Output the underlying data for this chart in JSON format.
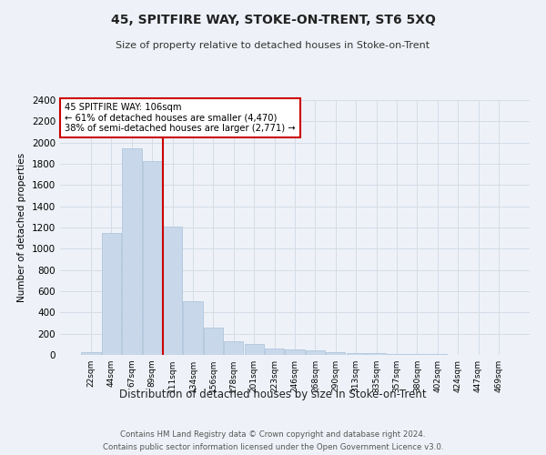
{
  "title": "45, SPITFIRE WAY, STOKE-ON-TRENT, ST6 5XQ",
  "subtitle": "Size of property relative to detached houses in Stoke-on-Trent",
  "xlabel": "Distribution of detached houses by size in Stoke-on-Trent",
  "ylabel": "Number of detached properties",
  "footer_line1": "Contains HM Land Registry data © Crown copyright and database right 2024.",
  "footer_line2": "Contains public sector information licensed under the Open Government Licence v3.0.",
  "bin_labels": [
    "22sqm",
    "44sqm",
    "67sqm",
    "89sqm",
    "111sqm",
    "134sqm",
    "156sqm",
    "178sqm",
    "201sqm",
    "223sqm",
    "246sqm",
    "268sqm",
    "290sqm",
    "313sqm",
    "335sqm",
    "357sqm",
    "380sqm",
    "402sqm",
    "424sqm",
    "447sqm",
    "469sqm"
  ],
  "bar_heights": [
    30,
    1150,
    1950,
    1830,
    1210,
    510,
    260,
    130,
    100,
    60,
    50,
    40,
    30,
    20,
    15,
    10,
    8,
    5,
    3,
    2,
    1
  ],
  "bar_color": "#c8d8ea",
  "bar_edge_color": "#a8c0d8",
  "ylim": [
    0,
    2400
  ],
  "yticks": [
    0,
    200,
    400,
    600,
    800,
    1000,
    1200,
    1400,
    1600,
    1800,
    2000,
    2200,
    2400
  ],
  "property_line_bin": 4,
  "annotation_text_line1": "45 SPITFIRE WAY: 106sqm",
  "annotation_text_line2": "← 61% of detached houses are smaller (4,470)",
  "annotation_text_line3": "38% of semi-detached houses are larger (2,771) →",
  "annotation_box_color": "#ffffff",
  "annotation_border_color": "#cc0000",
  "vline_color": "#cc0000",
  "grid_color": "#d4dce8",
  "background_color": "#eef2f8"
}
